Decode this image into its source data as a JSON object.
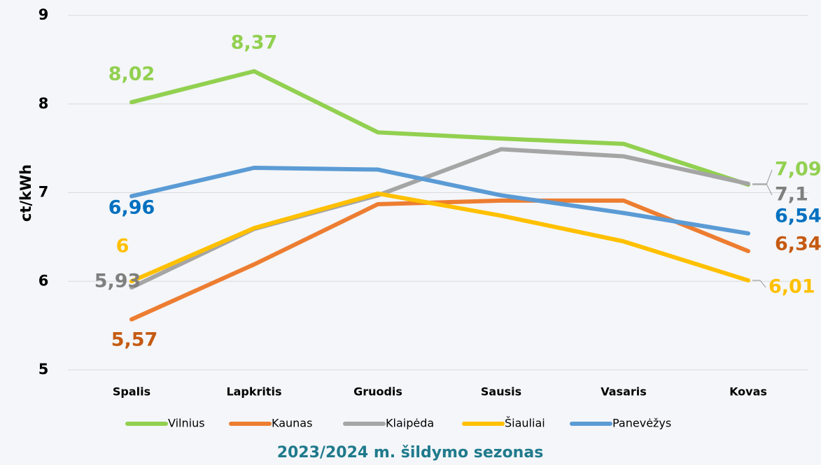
{
  "chart_data": {
    "type": "line",
    "y_label": "ct/kWh",
    "x_label": "2023/2024 m. šildymo sezonas",
    "categories": [
      "Spalis",
      "Lapkritis",
      "Gruodis",
      "Sausis",
      "Vasaris",
      "Kovas"
    ],
    "series": [
      {
        "name": "Vilnius",
        "color": "#92d050",
        "label_color": "#92d050",
        "values": [
          8.02,
          8.37,
          7.68,
          7.61,
          7.55,
          7.09
        ],
        "value_labels": [
          "8,02",
          "8,37",
          null,
          null,
          null,
          "7,09"
        ]
      },
      {
        "name": "Kaunas",
        "color": "#ed7d31",
        "label_color": "#c55a11",
        "values": [
          5.57,
          6.19,
          6.87,
          6.91,
          6.91,
          6.34
        ],
        "value_labels": [
          "5,57",
          null,
          null,
          null,
          null,
          "6,34"
        ]
      },
      {
        "name": "Klaipėda",
        "color": "#a5a5a5",
        "label_color": "#7f7f7f",
        "values": [
          5.93,
          6.59,
          6.97,
          7.49,
          7.41,
          7.1
        ],
        "value_labels": [
          "5,93",
          null,
          null,
          null,
          null,
          "7,1"
        ]
      },
      {
        "name": "Šiauliai",
        "color": "#ffc000",
        "label_color": "#ffc000",
        "values": [
          6,
          6.6,
          6.99,
          6.74,
          6.45,
          6.01
        ],
        "value_labels": [
          "6",
          null,
          null,
          null,
          null,
          "6,01"
        ]
      },
      {
        "name": "Panevėžys",
        "color": "#5b9bd5",
        "label_color": "#0070c0",
        "values": [
          6.96,
          7.28,
          7.26,
          6.97,
          6.77,
          6.54
        ],
        "value_labels": [
          "6,96",
          null,
          null,
          null,
          null,
          "6,54"
        ]
      }
    ],
    "ylim": [
      5,
      9
    ],
    "yticks": [
      5,
      6,
      7,
      8,
      9
    ],
    "grid": true,
    "legend": "bottom",
    "title_color": "#1f7a8c"
  }
}
